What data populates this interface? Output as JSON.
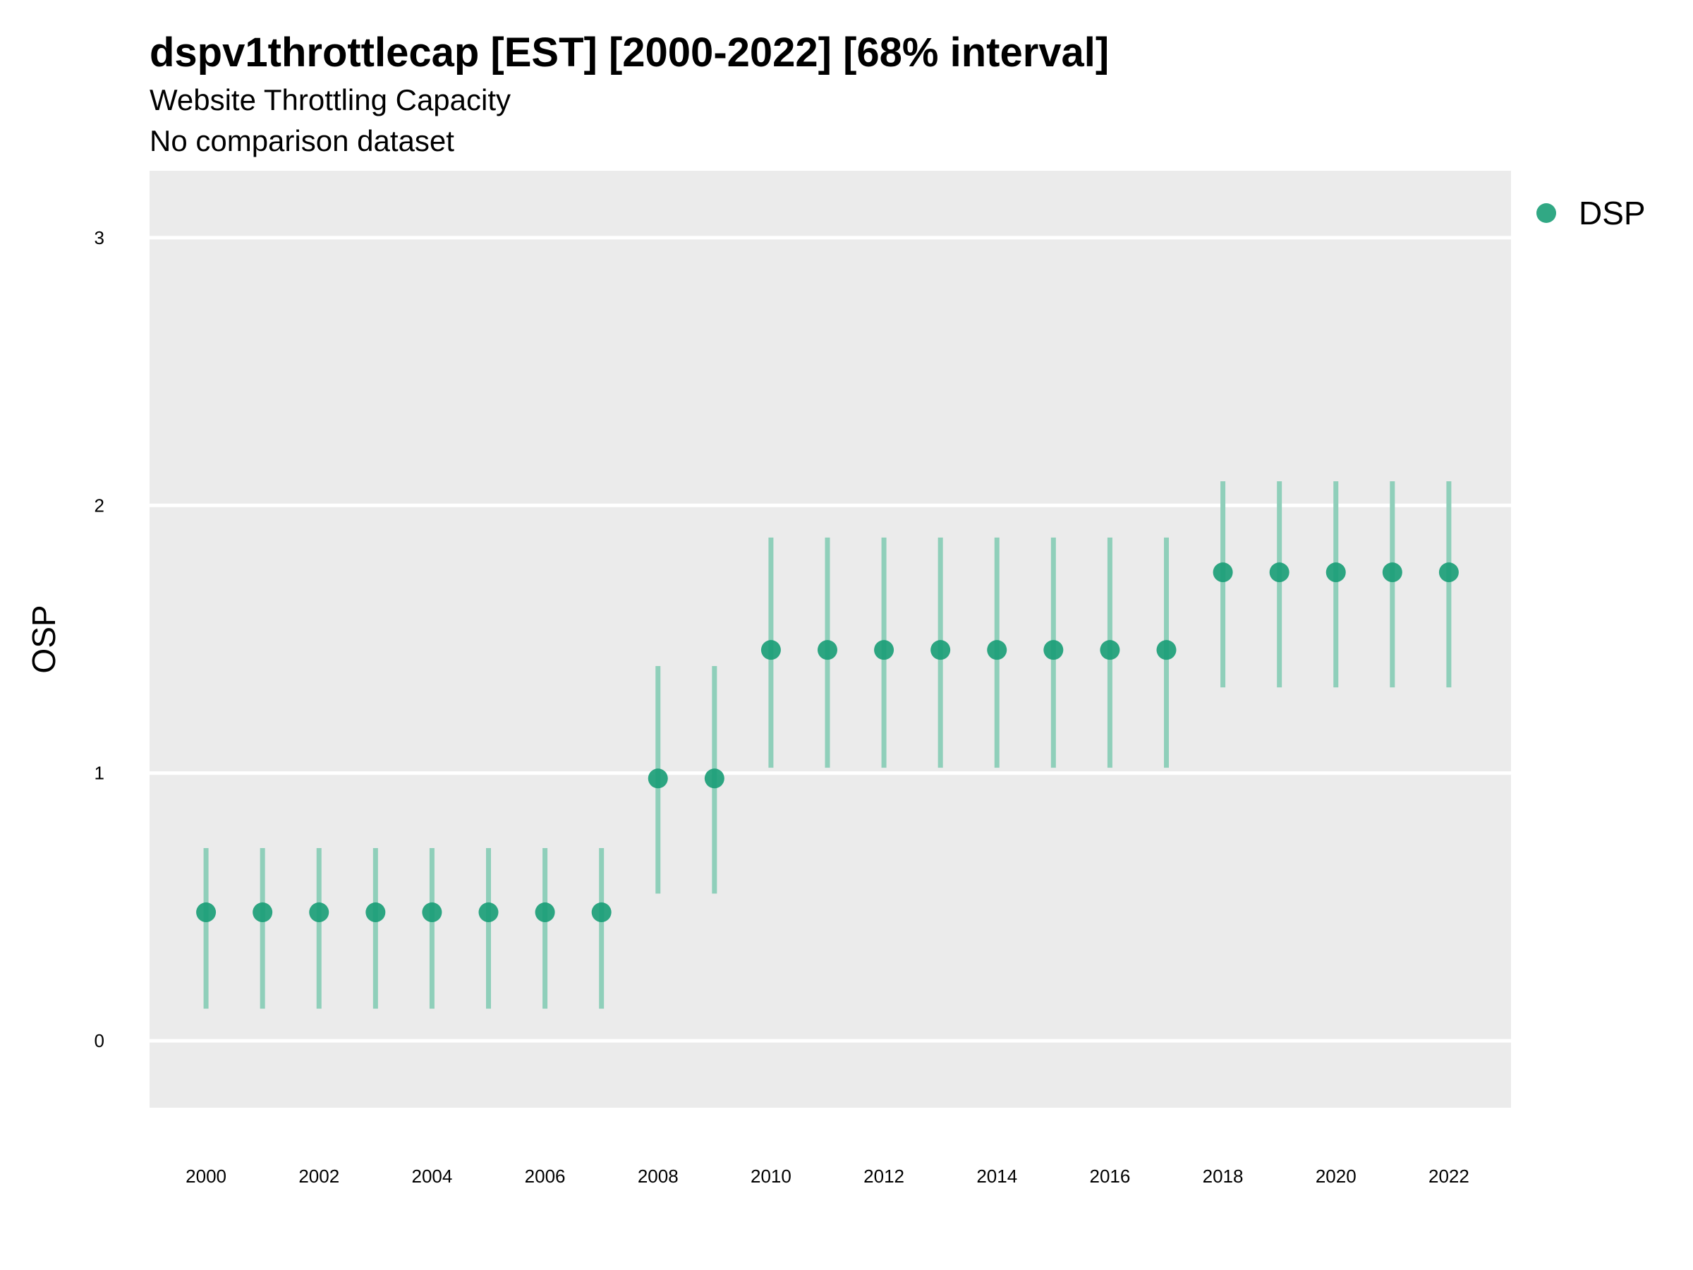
{
  "colors": {
    "panel_background": "#ebebeb",
    "grid": "#ffffff",
    "series": "#1b9e77",
    "interval": "#8fcfba"
  },
  "chart_data": {
    "type": "scatter",
    "title": "dspv1throttlecap [EST] [2000-2022] [68% interval]",
    "subtitle": "Website Throttling Capacity",
    "caption_line": "No comparison dataset",
    "xlabel": "",
    "ylabel": "OSP",
    "xlim": [
      1999,
      2023.1
    ],
    "ylim": [
      -0.25,
      3.25
    ],
    "x_ticks": [
      2000,
      2002,
      2004,
      2006,
      2008,
      2010,
      2012,
      2014,
      2016,
      2018,
      2020,
      2022
    ],
    "y_ticks": [
      0,
      1,
      2,
      3
    ],
    "grid": true,
    "legend_position": "right-top",
    "series": [
      {
        "name": "DSP",
        "x": [
          2000,
          2001,
          2002,
          2003,
          2004,
          2005,
          2006,
          2007,
          2008,
          2009,
          2010,
          2011,
          2012,
          2013,
          2014,
          2015,
          2016,
          2017,
          2018,
          2019,
          2020,
          2021,
          2022
        ],
        "values": [
          0.48,
          0.48,
          0.48,
          0.48,
          0.48,
          0.48,
          0.48,
          0.48,
          0.98,
          0.98,
          1.46,
          1.46,
          1.46,
          1.46,
          1.46,
          1.46,
          1.46,
          1.46,
          1.75,
          1.75,
          1.75,
          1.75,
          1.75
        ],
        "lower": [
          0.12,
          0.12,
          0.12,
          0.12,
          0.12,
          0.12,
          0.12,
          0.12,
          0.55,
          0.55,
          1.02,
          1.02,
          1.02,
          1.02,
          1.02,
          1.02,
          1.02,
          1.02,
          1.32,
          1.32,
          1.32,
          1.32,
          1.32
        ],
        "upper": [
          0.72,
          0.72,
          0.72,
          0.72,
          0.72,
          0.72,
          0.72,
          0.72,
          1.4,
          1.4,
          1.88,
          1.88,
          1.88,
          1.88,
          1.88,
          1.88,
          1.88,
          1.88,
          2.09,
          2.09,
          2.09,
          2.09,
          2.09
        ]
      }
    ]
  }
}
